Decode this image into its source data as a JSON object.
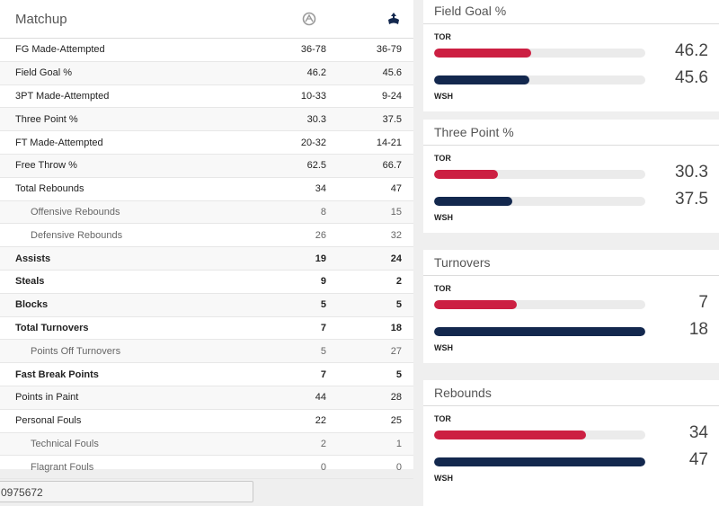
{
  "matchup": {
    "title": "Matchup",
    "away_logo_icon": "raptors-logo-icon",
    "home_logo_icon": "wizards-logo-icon",
    "rows": [
      {
        "label": "FG Made-Attempted",
        "a": "36-78",
        "b": "36-79",
        "sub": false,
        "bold": false
      },
      {
        "label": "Field Goal %",
        "a": "46.2",
        "b": "45.6",
        "sub": false,
        "bold": false
      },
      {
        "label": "3PT Made-Attempted",
        "a": "10-33",
        "b": "9-24",
        "sub": false,
        "bold": false
      },
      {
        "label": "Three Point %",
        "a": "30.3",
        "b": "37.5",
        "sub": false,
        "bold": false
      },
      {
        "label": "FT Made-Attempted",
        "a": "20-32",
        "b": "14-21",
        "sub": false,
        "bold": false
      },
      {
        "label": "Free Throw %",
        "a": "62.5",
        "b": "66.7",
        "sub": false,
        "bold": false
      },
      {
        "label": "Total Rebounds",
        "a": "34",
        "b": "47",
        "sub": false,
        "bold": false
      },
      {
        "label": "Offensive Rebounds",
        "a": "8",
        "b": "15",
        "sub": true,
        "bold": false
      },
      {
        "label": "Defensive Rebounds",
        "a": "26",
        "b": "32",
        "sub": true,
        "bold": false
      },
      {
        "label": "Assists",
        "a": "19",
        "b": "24",
        "sub": false,
        "bold": true
      },
      {
        "label": "Steals",
        "a": "9",
        "b": "2",
        "sub": false,
        "bold": true
      },
      {
        "label": "Blocks",
        "a": "5",
        "b": "5",
        "sub": false,
        "bold": true
      },
      {
        "label": "Total Turnovers",
        "a": "7",
        "b": "18",
        "sub": false,
        "bold": true
      },
      {
        "label": "Points Off Turnovers",
        "a": "5",
        "b": "27",
        "sub": true,
        "bold": false
      },
      {
        "label": "Fast Break Points",
        "a": "7",
        "b": "5",
        "sub": false,
        "bold": true
      },
      {
        "label": "Points in Paint",
        "a": "44",
        "b": "28",
        "sub": false,
        "bold": false
      },
      {
        "label": "Personal Fouls",
        "a": "22",
        "b": "25",
        "sub": false,
        "bold": false
      },
      {
        "label": "Technical Fouls",
        "a": "2",
        "b": "1",
        "sub": true,
        "bold": false
      },
      {
        "label": "Flagrant Fouls",
        "a": "0",
        "b": "0",
        "sub": true,
        "bold": false
      }
    ]
  },
  "bottom_input": {
    "value": "0975672"
  },
  "colors": {
    "tor": "#cc1f42",
    "wsh": "#13284e",
    "track": "#ebebeb"
  },
  "cards": [
    {
      "title": "Field Goal %",
      "tor_label": "TOR",
      "wsh_label": "WSH",
      "tor_value": "46.2",
      "wsh_value": "45.6",
      "tor_fill": 0.46,
      "wsh_fill": 0.45
    },
    {
      "title": "Three Point %",
      "tor_label": "TOR",
      "wsh_label": "WSH",
      "tor_value": "30.3",
      "wsh_value": "37.5",
      "tor_fill": 0.3,
      "wsh_fill": 0.37
    },
    {
      "title": "Turnovers",
      "tor_label": "TOR",
      "wsh_label": "WSH",
      "tor_value": "7",
      "wsh_value": "18",
      "tor_fill": 0.39,
      "wsh_fill": 1.0
    },
    {
      "title": "Rebounds",
      "tor_label": "TOR",
      "wsh_label": "WSH",
      "tor_value": "34",
      "wsh_value": "47",
      "tor_fill": 0.72,
      "wsh_fill": 1.0
    }
  ]
}
